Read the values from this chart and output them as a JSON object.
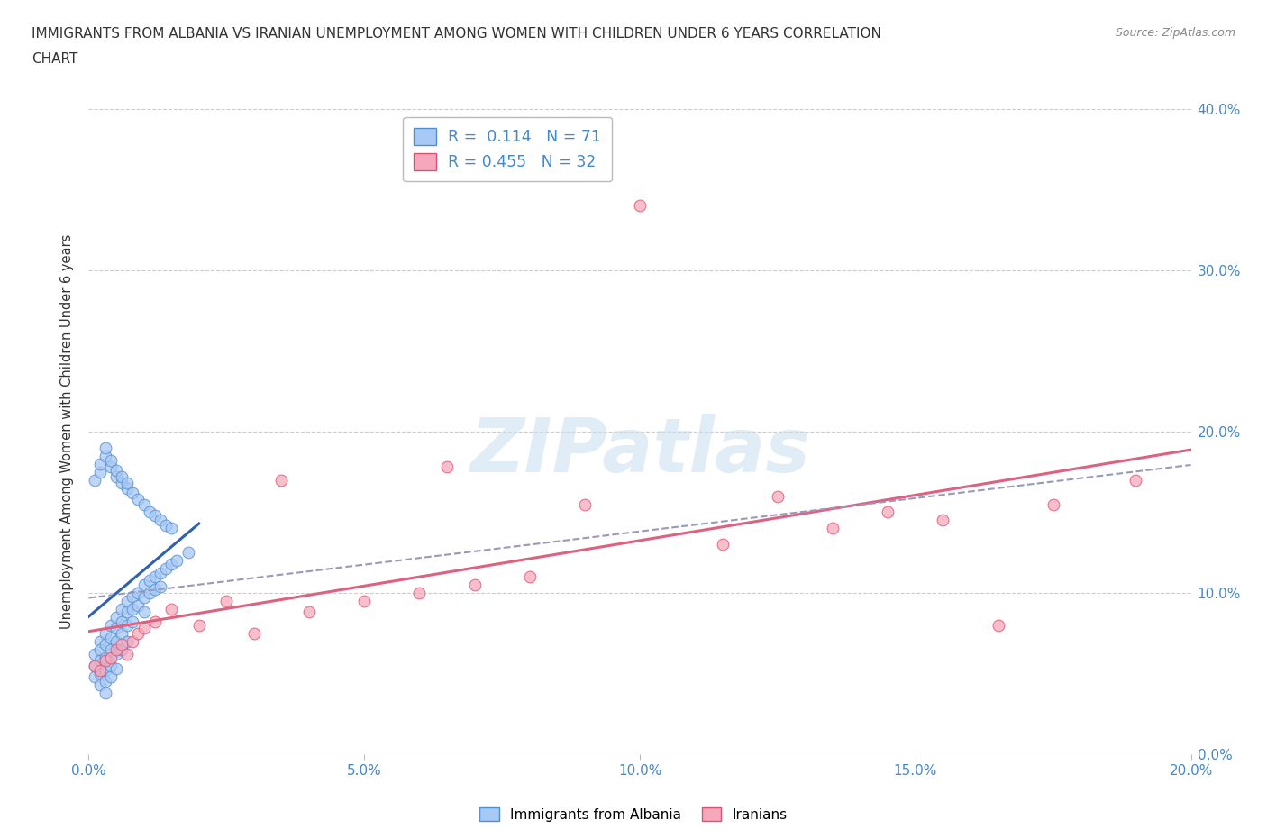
{
  "title_line1": "IMMIGRANTS FROM ALBANIA VS IRANIAN UNEMPLOYMENT AMONG WOMEN WITH CHILDREN UNDER 6 YEARS CORRELATION",
  "title_line2": "CHART",
  "source": "Source: ZipAtlas.com",
  "ylabel": "Unemployment Among Women with Children Under 6 years",
  "xlim": [
    0.0,
    0.2
  ],
  "ylim": [
    0.0,
    0.4
  ],
  "legend1_R": "0.114",
  "legend1_N": "71",
  "legend2_R": "0.455",
  "legend2_N": "32",
  "color_albania": "#a8c8f5",
  "color_iran": "#f5a8bc",
  "edge_albania": "#5090d0",
  "edge_iran": "#e05070",
  "line_color_albania": "#3060b0",
  "line_color_iran": "#e06080",
  "line_color_dashed": "#9999bb",
  "watermark_color": "#c8ddf0",
  "albania_x": [
    0.001,
    0.001,
    0.001,
    0.002,
    0.002,
    0.002,
    0.002,
    0.002,
    0.003,
    0.003,
    0.003,
    0.003,
    0.003,
    0.003,
    0.004,
    0.004,
    0.004,
    0.004,
    0.004,
    0.005,
    0.005,
    0.005,
    0.005,
    0.005,
    0.006,
    0.006,
    0.006,
    0.006,
    0.007,
    0.007,
    0.007,
    0.007,
    0.008,
    0.008,
    0.008,
    0.009,
    0.009,
    0.01,
    0.01,
    0.01,
    0.011,
    0.011,
    0.012,
    0.012,
    0.013,
    0.013,
    0.014,
    0.015,
    0.016,
    0.018,
    0.001,
    0.002,
    0.002,
    0.003,
    0.003,
    0.004,
    0.004,
    0.005,
    0.005,
    0.006,
    0.006,
    0.007,
    0.007,
    0.008,
    0.009,
    0.01,
    0.011,
    0.012,
    0.013,
    0.014,
    0.015
  ],
  "albania_y": [
    0.062,
    0.055,
    0.048,
    0.07,
    0.065,
    0.058,
    0.05,
    0.043,
    0.075,
    0.068,
    0.06,
    0.052,
    0.045,
    0.038,
    0.08,
    0.072,
    0.065,
    0.055,
    0.048,
    0.085,
    0.078,
    0.07,
    0.062,
    0.053,
    0.09,
    0.082,
    0.075,
    0.065,
    0.095,
    0.088,
    0.08,
    0.07,
    0.098,
    0.09,
    0.082,
    0.1,
    0.092,
    0.105,
    0.097,
    0.088,
    0.108,
    0.1,
    0.11,
    0.102,
    0.112,
    0.104,
    0.115,
    0.118,
    0.12,
    0.125,
    0.17,
    0.175,
    0.18,
    0.185,
    0.19,
    0.178,
    0.182,
    0.172,
    0.176,
    0.168,
    0.172,
    0.165,
    0.168,
    0.162,
    0.158,
    0.155,
    0.15,
    0.148,
    0.145,
    0.142,
    0.14
  ],
  "iran_x": [
    0.001,
    0.002,
    0.003,
    0.004,
    0.005,
    0.006,
    0.007,
    0.008,
    0.009,
    0.01,
    0.012,
    0.015,
    0.02,
    0.025,
    0.03,
    0.035,
    0.04,
    0.05,
    0.06,
    0.065,
    0.07,
    0.08,
    0.09,
    0.1,
    0.115,
    0.125,
    0.135,
    0.145,
    0.155,
    0.165,
    0.175,
    0.19
  ],
  "iran_y": [
    0.055,
    0.052,
    0.058,
    0.06,
    0.065,
    0.068,
    0.062,
    0.07,
    0.075,
    0.078,
    0.082,
    0.09,
    0.08,
    0.095,
    0.075,
    0.17,
    0.088,
    0.095,
    0.1,
    0.178,
    0.105,
    0.11,
    0.155,
    0.34,
    0.13,
    0.16,
    0.14,
    0.15,
    0.145,
    0.08,
    0.155,
    0.17
  ]
}
